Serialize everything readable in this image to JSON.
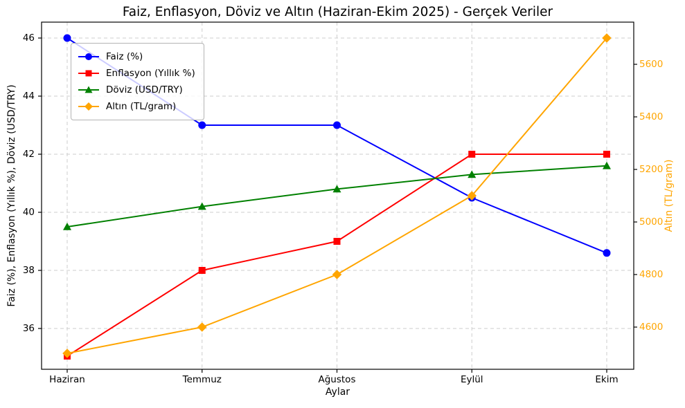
{
  "figure": {
    "title": "Faiz, Enflasyon, Döviz ve Altın (Haziran-Ekim 2025) - Gerçek Veriler",
    "xlabel": "Aylar",
    "ylabel_left": "Faiz (%), Enflasyon (Yıllık %), Döviz (USD/TRY)",
    "ylabel_right": "Altın (TL/gram)",
    "colors": {
      "background": "#ffffff",
      "spine": "#000000",
      "grid": "#cdcdcd",
      "right_axis_text": "#FFA500"
    }
  },
  "chart_data": {
    "type": "line",
    "categories": [
      "Haziran",
      "Temmuz",
      "Ağustos",
      "Eylül",
      "Ekim"
    ],
    "series": [
      {
        "name": "Faiz (%)",
        "axis": "left",
        "color": "#0000ff",
        "marker": "circle",
        "values": [
          46,
          43,
          43,
          40.5,
          38.6
        ]
      },
      {
        "name": "Enflasyon (Yıllık %)",
        "axis": "left",
        "color": "#ff0000",
        "marker": "square",
        "values": [
          35.05,
          38,
          39,
          42,
          42
        ]
      },
      {
        "name": "Döviz (USD/TRY)",
        "axis": "left",
        "color": "#008000",
        "marker": "triangle",
        "values": [
          39.5,
          40.2,
          40.8,
          41.3,
          41.6
        ]
      },
      {
        "name": "Altın (TL/gram)",
        "axis": "right",
        "color": "#FFA500",
        "marker": "diamond",
        "values": [
          4500,
          4600,
          4800,
          5100,
          5700
        ]
      }
    ],
    "yticks_left": [
      36,
      38,
      40,
      42,
      44,
      46
    ],
    "yticks_right": [
      4600,
      4800,
      5000,
      5200,
      5400,
      5600
    ],
    "ylim_left": [
      34.6,
      46.55
    ],
    "ylim_right": [
      4439,
      5761
    ],
    "grid": true,
    "grid_style": "dashed",
    "legend_position": "upper left"
  }
}
